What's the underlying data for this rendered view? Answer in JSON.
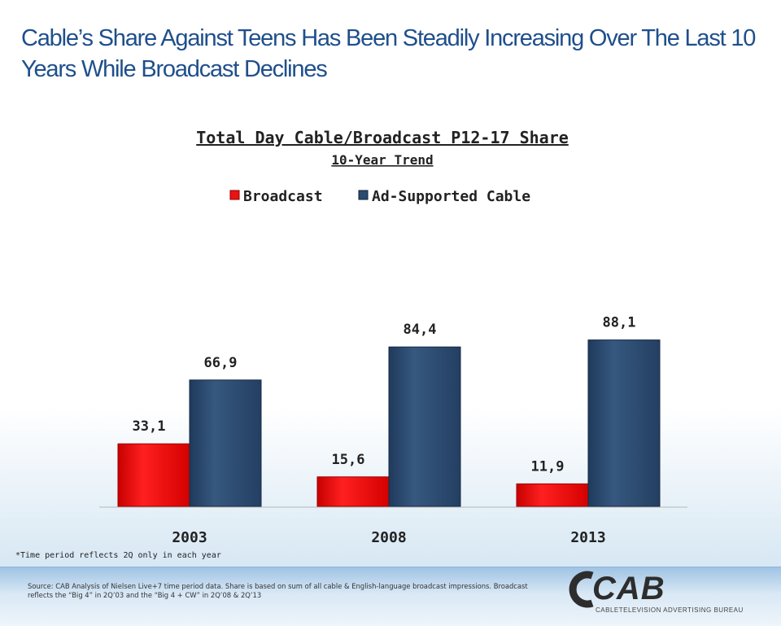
{
  "headline": "Cable’s Share Against Teens Has Been Steadily Increasing Over The Last 10 Years While Broadcast Declines",
  "chart_data": {
    "type": "bar",
    "title": "Total Day Cable/Broadcast P12-17 Share",
    "subtitle": "10-Year Trend",
    "categories": [
      "2003",
      "2008",
      "2013"
    ],
    "series": [
      {
        "name": "Broadcast",
        "values": [
          33.1,
          15.6,
          11.9
        ],
        "labels": [
          "33,1",
          "15,6",
          "11,9"
        ],
        "color": "#ee1111"
      },
      {
        "name": "Ad-Supported Cable",
        "values": [
          66.9,
          84.4,
          88.1
        ],
        "labels": [
          "66,9",
          "84,4",
          "88,1"
        ],
        "color": "#2b4a70"
      }
    ],
    "ylim": [
      0,
      100
    ],
    "grid": false,
    "legend": "top-center",
    "xlabel": "",
    "ylabel": ""
  },
  "footnote": "*Time period reflects 2Q only in each year",
  "source": "Source: CAB Analysis of Nielsen Live+7 time period data. Share is based on sum of all cable & English-language broadcast impressions. Broadcast reflects the “Big 4” in 2Q’03 and the “Big 4 + CW” in 2Q’08 & 2Q’13",
  "logo": {
    "name": "CAB",
    "tagline": "CABLETELEVISION ADVERTISING BUREAU"
  }
}
